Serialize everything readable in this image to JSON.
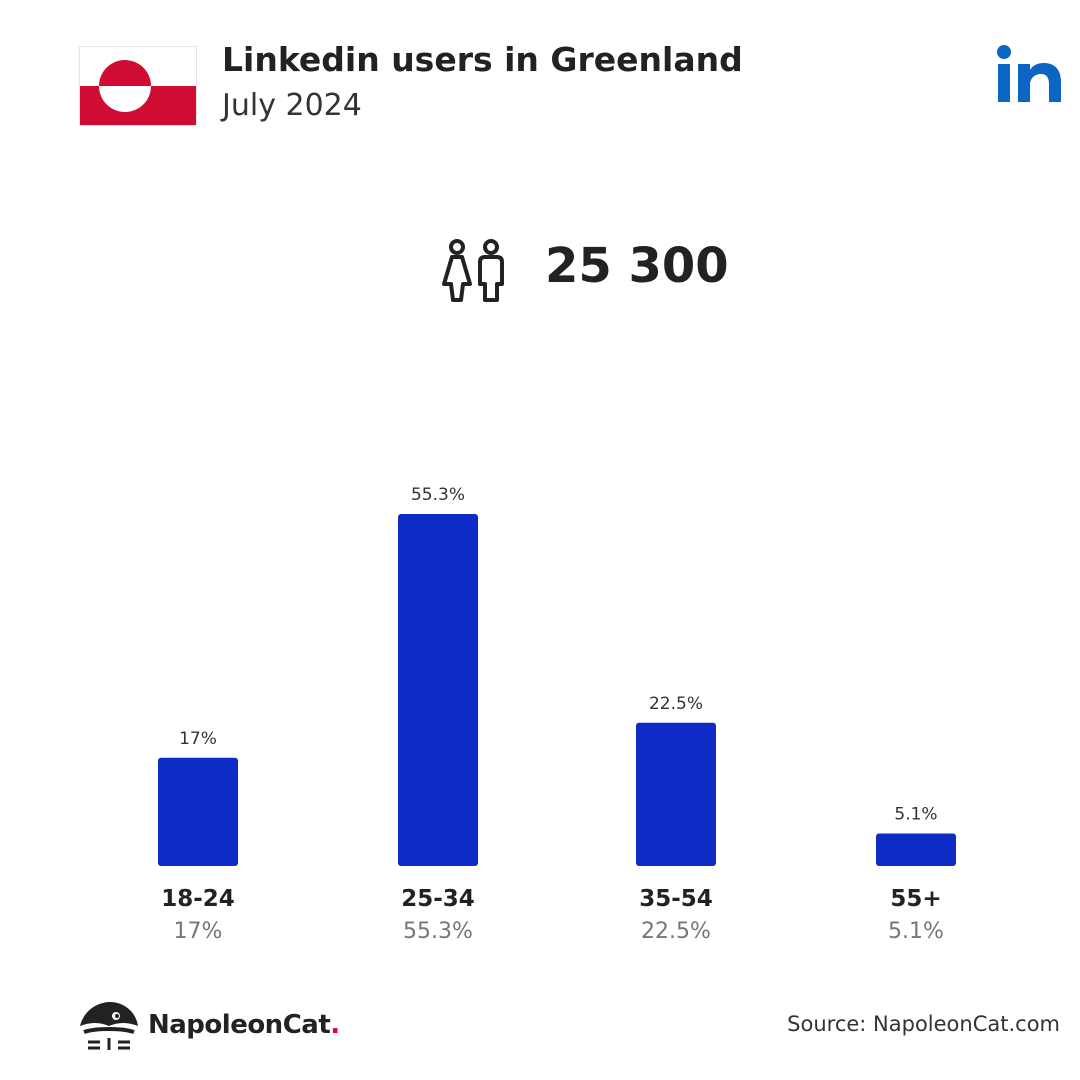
{
  "header": {
    "title": "Linkedin users in Greenland",
    "subtitle": "July 2024"
  },
  "summary": {
    "total_users": "25 300",
    "icon": "people-icon"
  },
  "colors": {
    "bar": "#0f2bc5",
    "flag_red": "#d00c33",
    "linkedin_blue": "#0a66c2",
    "brand_dot": "#d6072b"
  },
  "chart_data": {
    "type": "bar",
    "title": "",
    "xlabel": "",
    "ylabel": "",
    "categories": [
      "18-24",
      "25-34",
      "35-54",
      "55+"
    ],
    "values": [
      17,
      55.3,
      22.5,
      5.1
    ],
    "value_labels": [
      "17%",
      "55.3%",
      "22.5%",
      "5.1%"
    ],
    "ylim": [
      0,
      55.3
    ],
    "grid": false,
    "legend": "none"
  },
  "footer": {
    "brand_name": "NapoleonCat",
    "brand_dot": ".",
    "source": "Source: NapoleonCat.com"
  }
}
